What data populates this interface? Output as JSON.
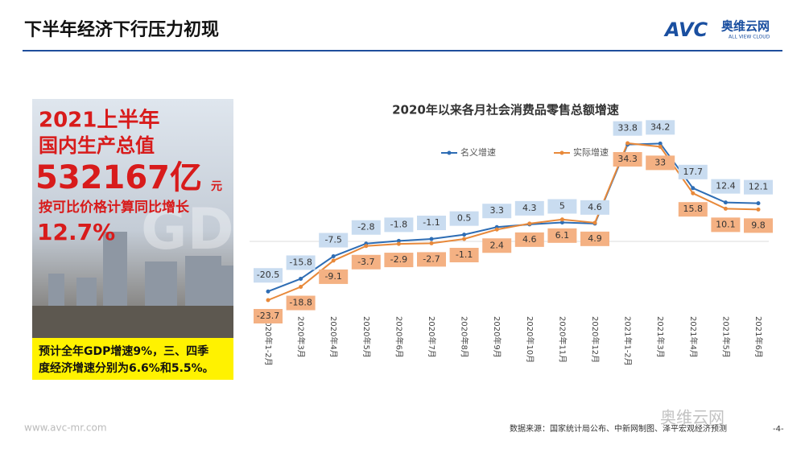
{
  "header": {
    "title": "下半年经济下行压力初现"
  },
  "logo": {
    "abbr": "AVC",
    "brand": "奥维云网",
    "tagline": "ALL VIEW CLOUD"
  },
  "panel": {
    "line1": "2021上半年",
    "line2": "国内生产总值",
    "amount": "532167亿",
    "unit": "元",
    "note": "按可比价格计算同比增长",
    "growth": "12.7%",
    "watermark": "GDP",
    "forecast_line1": "预计全年GDP增速9%，三、四季",
    "forecast_line2": "度经济增速分别为6.6%和5.5%。"
  },
  "footer": {
    "url": "www.avc-mr.com",
    "source": "数据来源：国家统计局公布、中新网制图、泽平宏观经济预测",
    "page": "-4-",
    "watermark": "奥维云网"
  },
  "chart_data": {
    "type": "line",
    "title": "2020年以来各月社会消费品零售总额增速",
    "categories": [
      "2020年1-2月",
      "2020年3月",
      "2020年4月",
      "2020年5月",
      "2020年6月",
      "2020年7月",
      "2020年8月",
      "2020年9月",
      "2020年10月",
      "2020年11月",
      "2020年12月",
      "2021年1-2月",
      "2021年3月",
      "2021年4月",
      "2021年5月",
      "2021年6月"
    ],
    "series": [
      {
        "name": "名义增速",
        "color": "#2e6db4",
        "label_color": "#c9dcf0",
        "values": [
          -20.5,
          -15.8,
          -7.5,
          -2.8,
          -1.8,
          -1.1,
          0.5,
          3.3,
          4.3,
          5,
          4.6,
          33.8,
          34.2,
          17.7,
          12.4,
          12.1
        ]
      },
      {
        "name": "实际增速",
        "color": "#e8893a",
        "label_color": "#f4b183",
        "values": [
          -23.7,
          -18.8,
          -9.1,
          -3.7,
          -2.9,
          -2.7,
          -1.1,
          2.4,
          4.6,
          6.1,
          4.9,
          34.3,
          33,
          15.8,
          10.1,
          9.8
        ]
      }
    ]
  }
}
